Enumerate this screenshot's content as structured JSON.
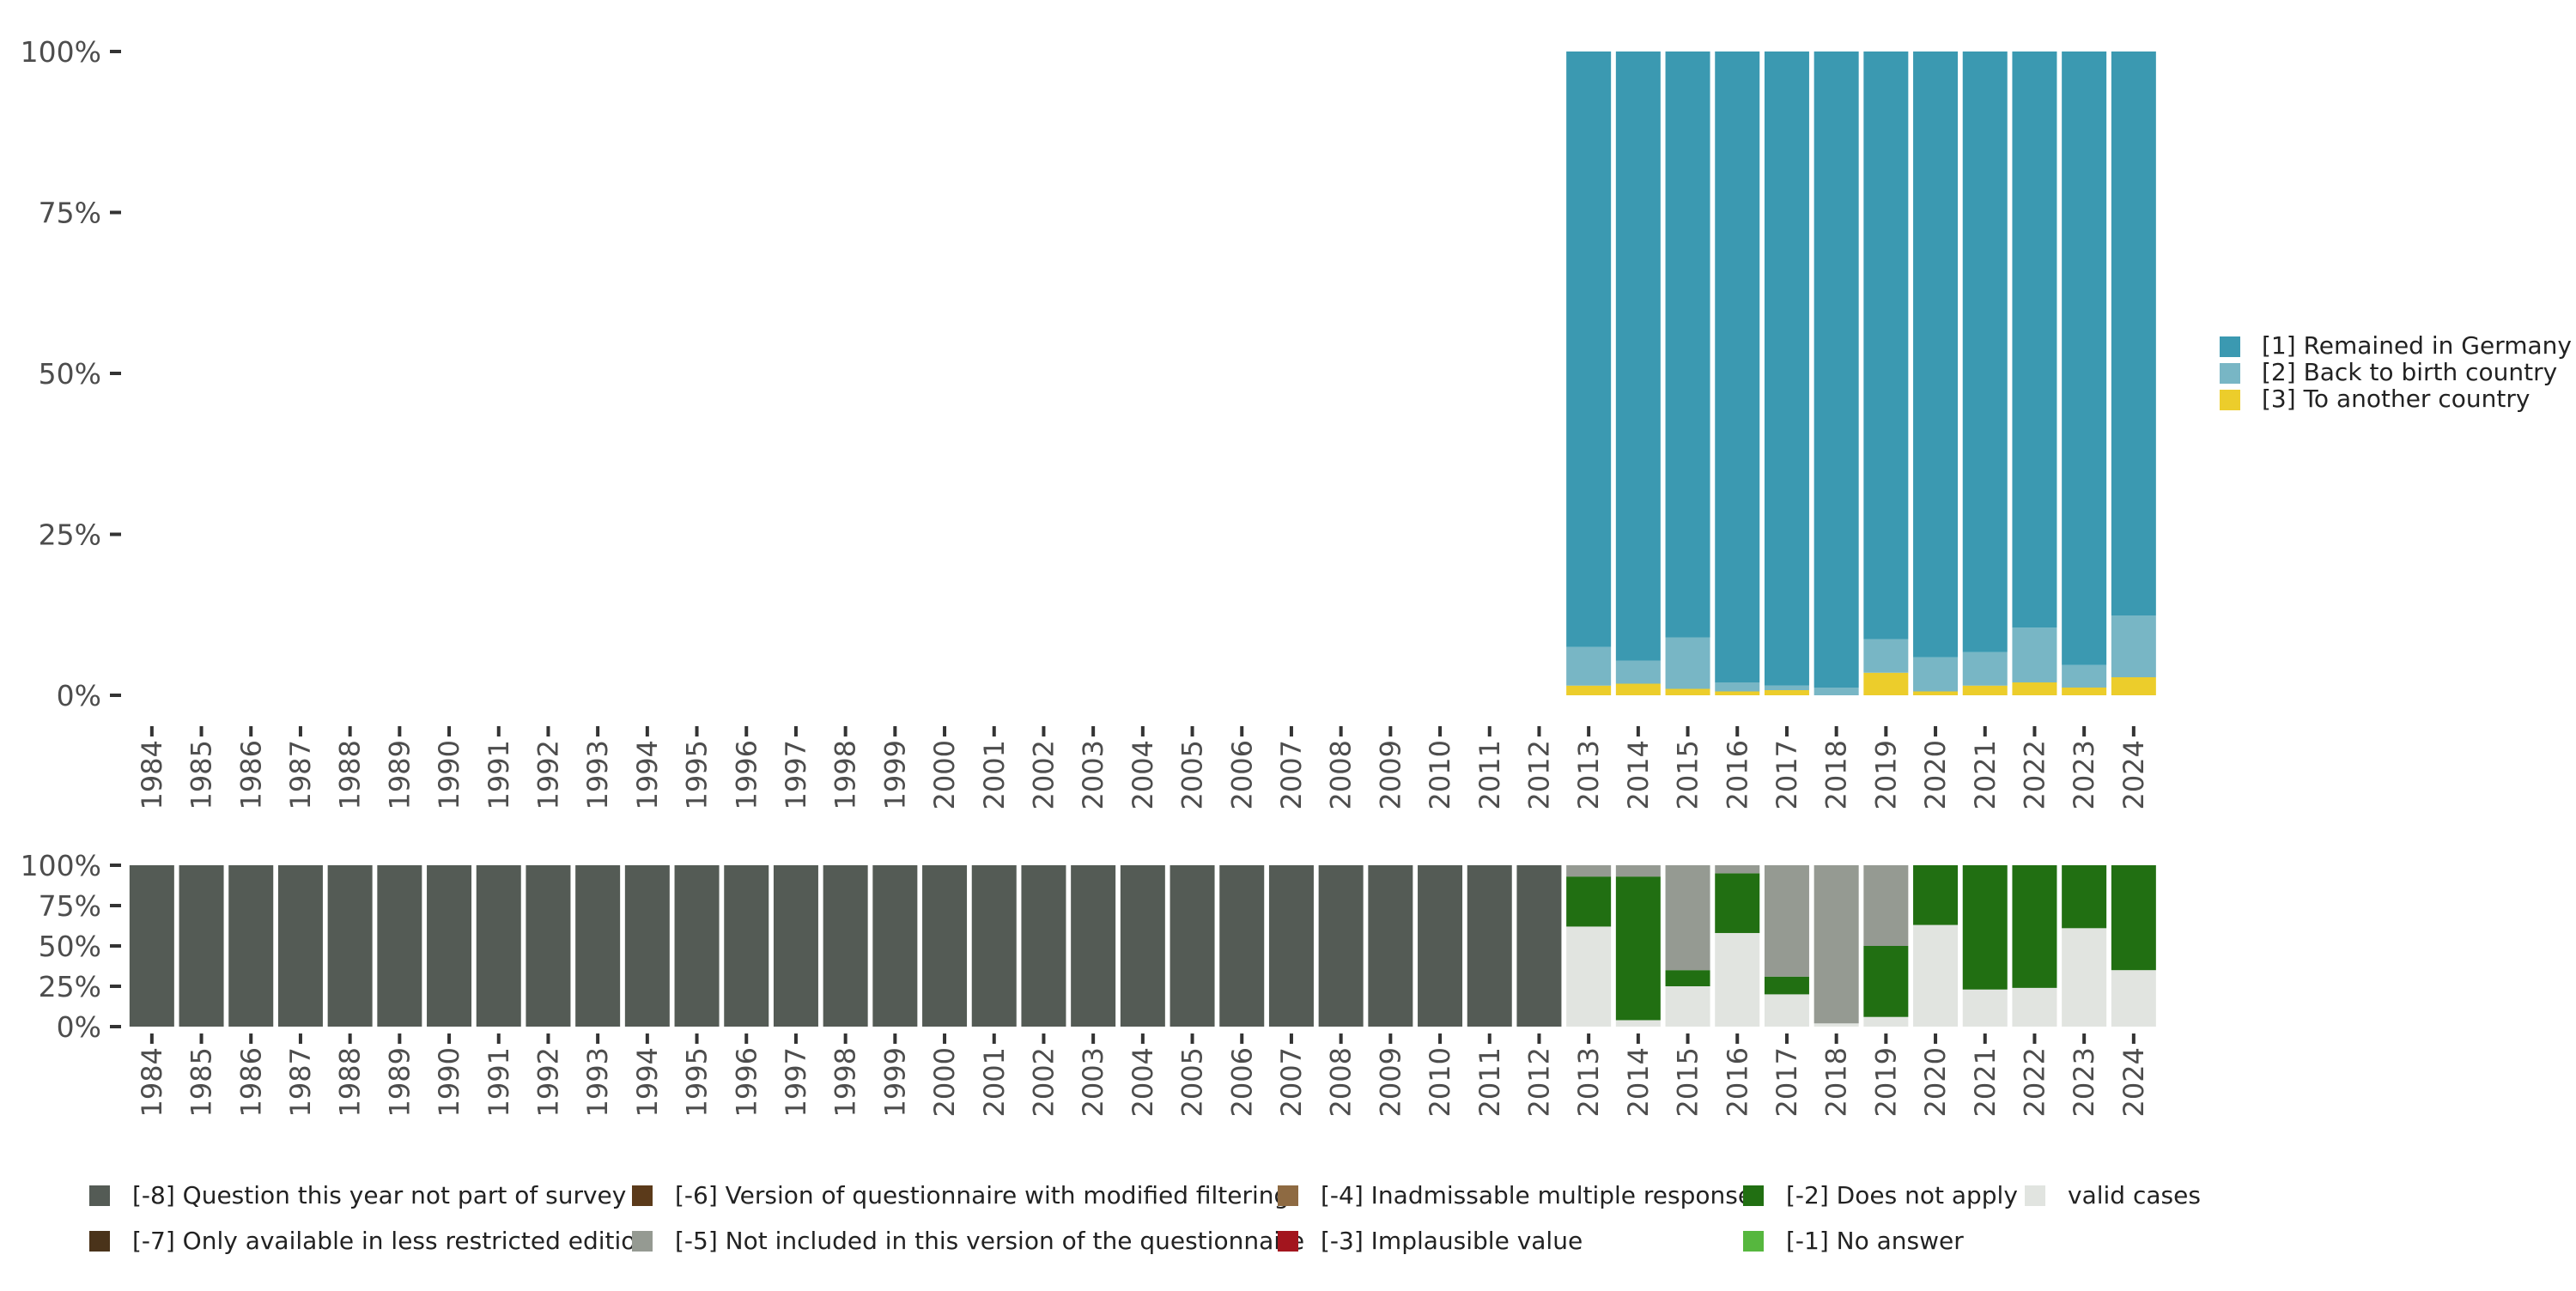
{
  "colors": {
    "remained": "#3b99b1",
    "back": "#78b6c5",
    "another": "#eccd2b",
    "m8": "#545b55",
    "m7": "#4a331a",
    "m6": "#5b3a1a",
    "m5": "#959a92",
    "m4": "#8e6a42",
    "m3": "#a3151e",
    "m2": "#216f12",
    "m1": "#56b73e",
    "valid": "#e1e4e0",
    "axis_text": "#4d4d4d"
  },
  "chart_data": [
    {
      "type": "bar",
      "stacked": true,
      "title": "",
      "xlabel": "",
      "ylabel": "",
      "ylim": [
        0,
        100
      ],
      "yticks": [
        "0%",
        "25%",
        "50%",
        "75%",
        "100%"
      ],
      "categories": [
        "1984",
        "1985",
        "1986",
        "1987",
        "1988",
        "1989",
        "1990",
        "1991",
        "1992",
        "1993",
        "1994",
        "1995",
        "1996",
        "1997",
        "1998",
        "1999",
        "2000",
        "2001",
        "2002",
        "2003",
        "2004",
        "2005",
        "2006",
        "2007",
        "2008",
        "2009",
        "2010",
        "2011",
        "2012",
        "2013",
        "2014",
        "2015",
        "2016",
        "2017",
        "2018",
        "2019",
        "2020",
        "2021",
        "2022",
        "2023",
        "2024"
      ],
      "legend_position": "right",
      "series": [
        {
          "name": "[3] To another country",
          "color_key": "another",
          "values": [
            0,
            0,
            0,
            0,
            0,
            0,
            0,
            0,
            0,
            0,
            0,
            0,
            0,
            0,
            0,
            0,
            0,
            0,
            0,
            0,
            0,
            0,
            0,
            0,
            0,
            0,
            0,
            0,
            0,
            1.5,
            1.8,
            1.0,
            0.6,
            0.8,
            0,
            3.5,
            0.6,
            1.5,
            2.0,
            1.2,
            2.8
          ]
        },
        {
          "name": "[2] Back to birth country",
          "color_key": "back",
          "values": [
            0,
            0,
            0,
            0,
            0,
            0,
            0,
            0,
            0,
            0,
            0,
            0,
            0,
            0,
            0,
            0,
            0,
            0,
            0,
            0,
            0,
            0,
            0,
            0,
            0,
            0,
            0,
            0,
            0,
            6.0,
            3.6,
            8.0,
            1.4,
            0.7,
            1.2,
            5.2,
            5.3,
            5.2,
            8.5,
            3.5,
            9.6
          ]
        },
        {
          "name": "[1] Remained in Germany",
          "color_key": "remained",
          "values": [
            0,
            0,
            0,
            0,
            0,
            0,
            0,
            0,
            0,
            0,
            0,
            0,
            0,
            0,
            0,
            0,
            0,
            0,
            0,
            0,
            0,
            0,
            0,
            0,
            0,
            0,
            0,
            0,
            0,
            92.5,
            94.6,
            91.0,
            98.0,
            98.5,
            98.8,
            91.3,
            94.1,
            93.3,
            89.5,
            95.3,
            87.6
          ]
        }
      ]
    },
    {
      "type": "bar",
      "stacked": true,
      "title": "",
      "xlabel": "",
      "ylabel": "",
      "ylim": [
        0,
        100
      ],
      "yticks": [
        "0%",
        "25%",
        "50%",
        "75%",
        "100%"
      ],
      "categories": [
        "1984",
        "1985",
        "1986",
        "1987",
        "1988",
        "1989",
        "1990",
        "1991",
        "1992",
        "1993",
        "1994",
        "1995",
        "1996",
        "1997",
        "1998",
        "1999",
        "2000",
        "2001",
        "2002",
        "2003",
        "2004",
        "2005",
        "2006",
        "2007",
        "2008",
        "2009",
        "2010",
        "2011",
        "2012",
        "2013",
        "2014",
        "2015",
        "2016",
        "2017",
        "2018",
        "2019",
        "2020",
        "2021",
        "2022",
        "2023",
        "2024"
      ],
      "legend_position": "bottom",
      "series": [
        {
          "name": "valid cases",
          "color_key": "valid",
          "values": [
            0,
            0,
            0,
            0,
            0,
            0,
            0,
            0,
            0,
            0,
            0,
            0,
            0,
            0,
            0,
            0,
            0,
            0,
            0,
            0,
            0,
            0,
            0,
            0,
            0,
            0,
            0,
            0,
            0,
            62,
            4,
            25,
            58,
            20,
            2,
            6,
            63,
            23,
            24,
            61,
            35
          ]
        },
        {
          "name": "[-2] Does not apply",
          "color_key": "m2",
          "values": [
            0,
            0,
            0,
            0,
            0,
            0,
            0,
            0,
            0,
            0,
            0,
            0,
            0,
            0,
            0,
            0,
            0,
            0,
            0,
            0,
            0,
            0,
            0,
            0,
            0,
            0,
            0,
            0,
            0,
            31,
            89,
            10,
            37,
            11,
            0,
            44,
            37,
            77,
            76,
            39,
            65
          ]
        },
        {
          "name": "[-5] Not included in this version of the questionnaire",
          "color_key": "m5",
          "values": [
            0,
            0,
            0,
            0,
            0,
            0,
            0,
            0,
            0,
            0,
            0,
            0,
            0,
            0,
            0,
            0,
            0,
            0,
            0,
            0,
            0,
            0,
            0,
            0,
            0,
            0,
            0,
            0,
            0,
            7,
            7,
            65,
            5,
            69,
            98,
            50,
            0,
            0,
            0,
            0,
            0
          ]
        },
        {
          "name": "[-8] Question this year not part of survey",
          "color_key": "m8",
          "values": [
            100,
            100,
            100,
            100,
            100,
            100,
            100,
            100,
            100,
            100,
            100,
            100,
            100,
            100,
            100,
            100,
            100,
            100,
            100,
            100,
            100,
            100,
            100,
            100,
            100,
            100,
            100,
            100,
            100,
            0,
            0,
            0,
            0,
            0,
            0,
            0,
            0,
            0,
            0,
            0,
            0
          ]
        }
      ]
    }
  ],
  "legend_top": [
    {
      "label": "[1] Remained in Germany",
      "color_key": "remained"
    },
    {
      "label": "[2] Back to birth country",
      "color_key": "back"
    },
    {
      "label": "[3] To another country",
      "color_key": "another"
    }
  ],
  "legend_bottom": [
    {
      "label": "[-8] Question this year not part of survey",
      "color_key": "m8"
    },
    {
      "label": "[-7] Only available in less restricted edition",
      "color_key": "m7"
    },
    {
      "label": "[-6] Version of questionnaire with modified filtering",
      "color_key": "m6"
    },
    {
      "label": "[-5] Not included in this version of the questionnaire",
      "color_key": "m5"
    },
    {
      "label": "[-4] Inadmissable multiple response",
      "color_key": "m4"
    },
    {
      "label": "[-3] Implausible value",
      "color_key": "m3"
    },
    {
      "label": "[-2] Does not apply",
      "color_key": "m2"
    },
    {
      "label": "[-1] No answer",
      "color_key": "m1"
    },
    {
      "label": "valid cases",
      "color_key": "valid"
    }
  ]
}
